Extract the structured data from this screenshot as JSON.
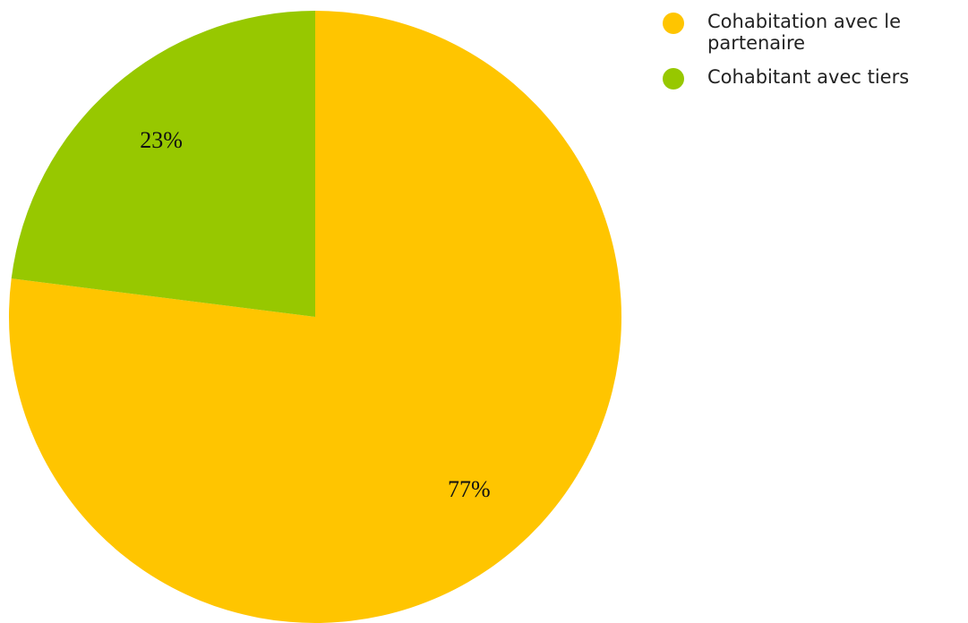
{
  "chart_data": {
    "type": "pie",
    "categories": [
      "Cohabitation avec le partenaire",
      "Cohabitant avec tiers"
    ],
    "values": [
      77,
      23
    ],
    "value_labels": [
      "77%",
      "23%"
    ],
    "colors": [
      "#ffc500",
      "#97c800"
    ]
  }
}
